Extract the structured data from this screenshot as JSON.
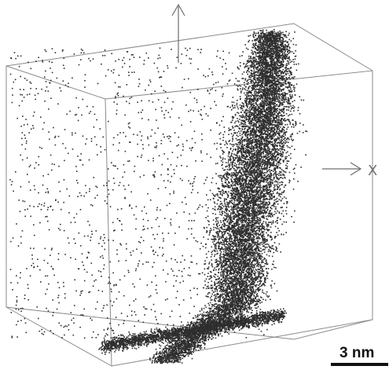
{
  "figure": {
    "axis_label_x": "X",
    "scale_bar_label": "3 nm",
    "point_color": "#2e2e2e",
    "box_color": "#8a8a8a"
  }
}
